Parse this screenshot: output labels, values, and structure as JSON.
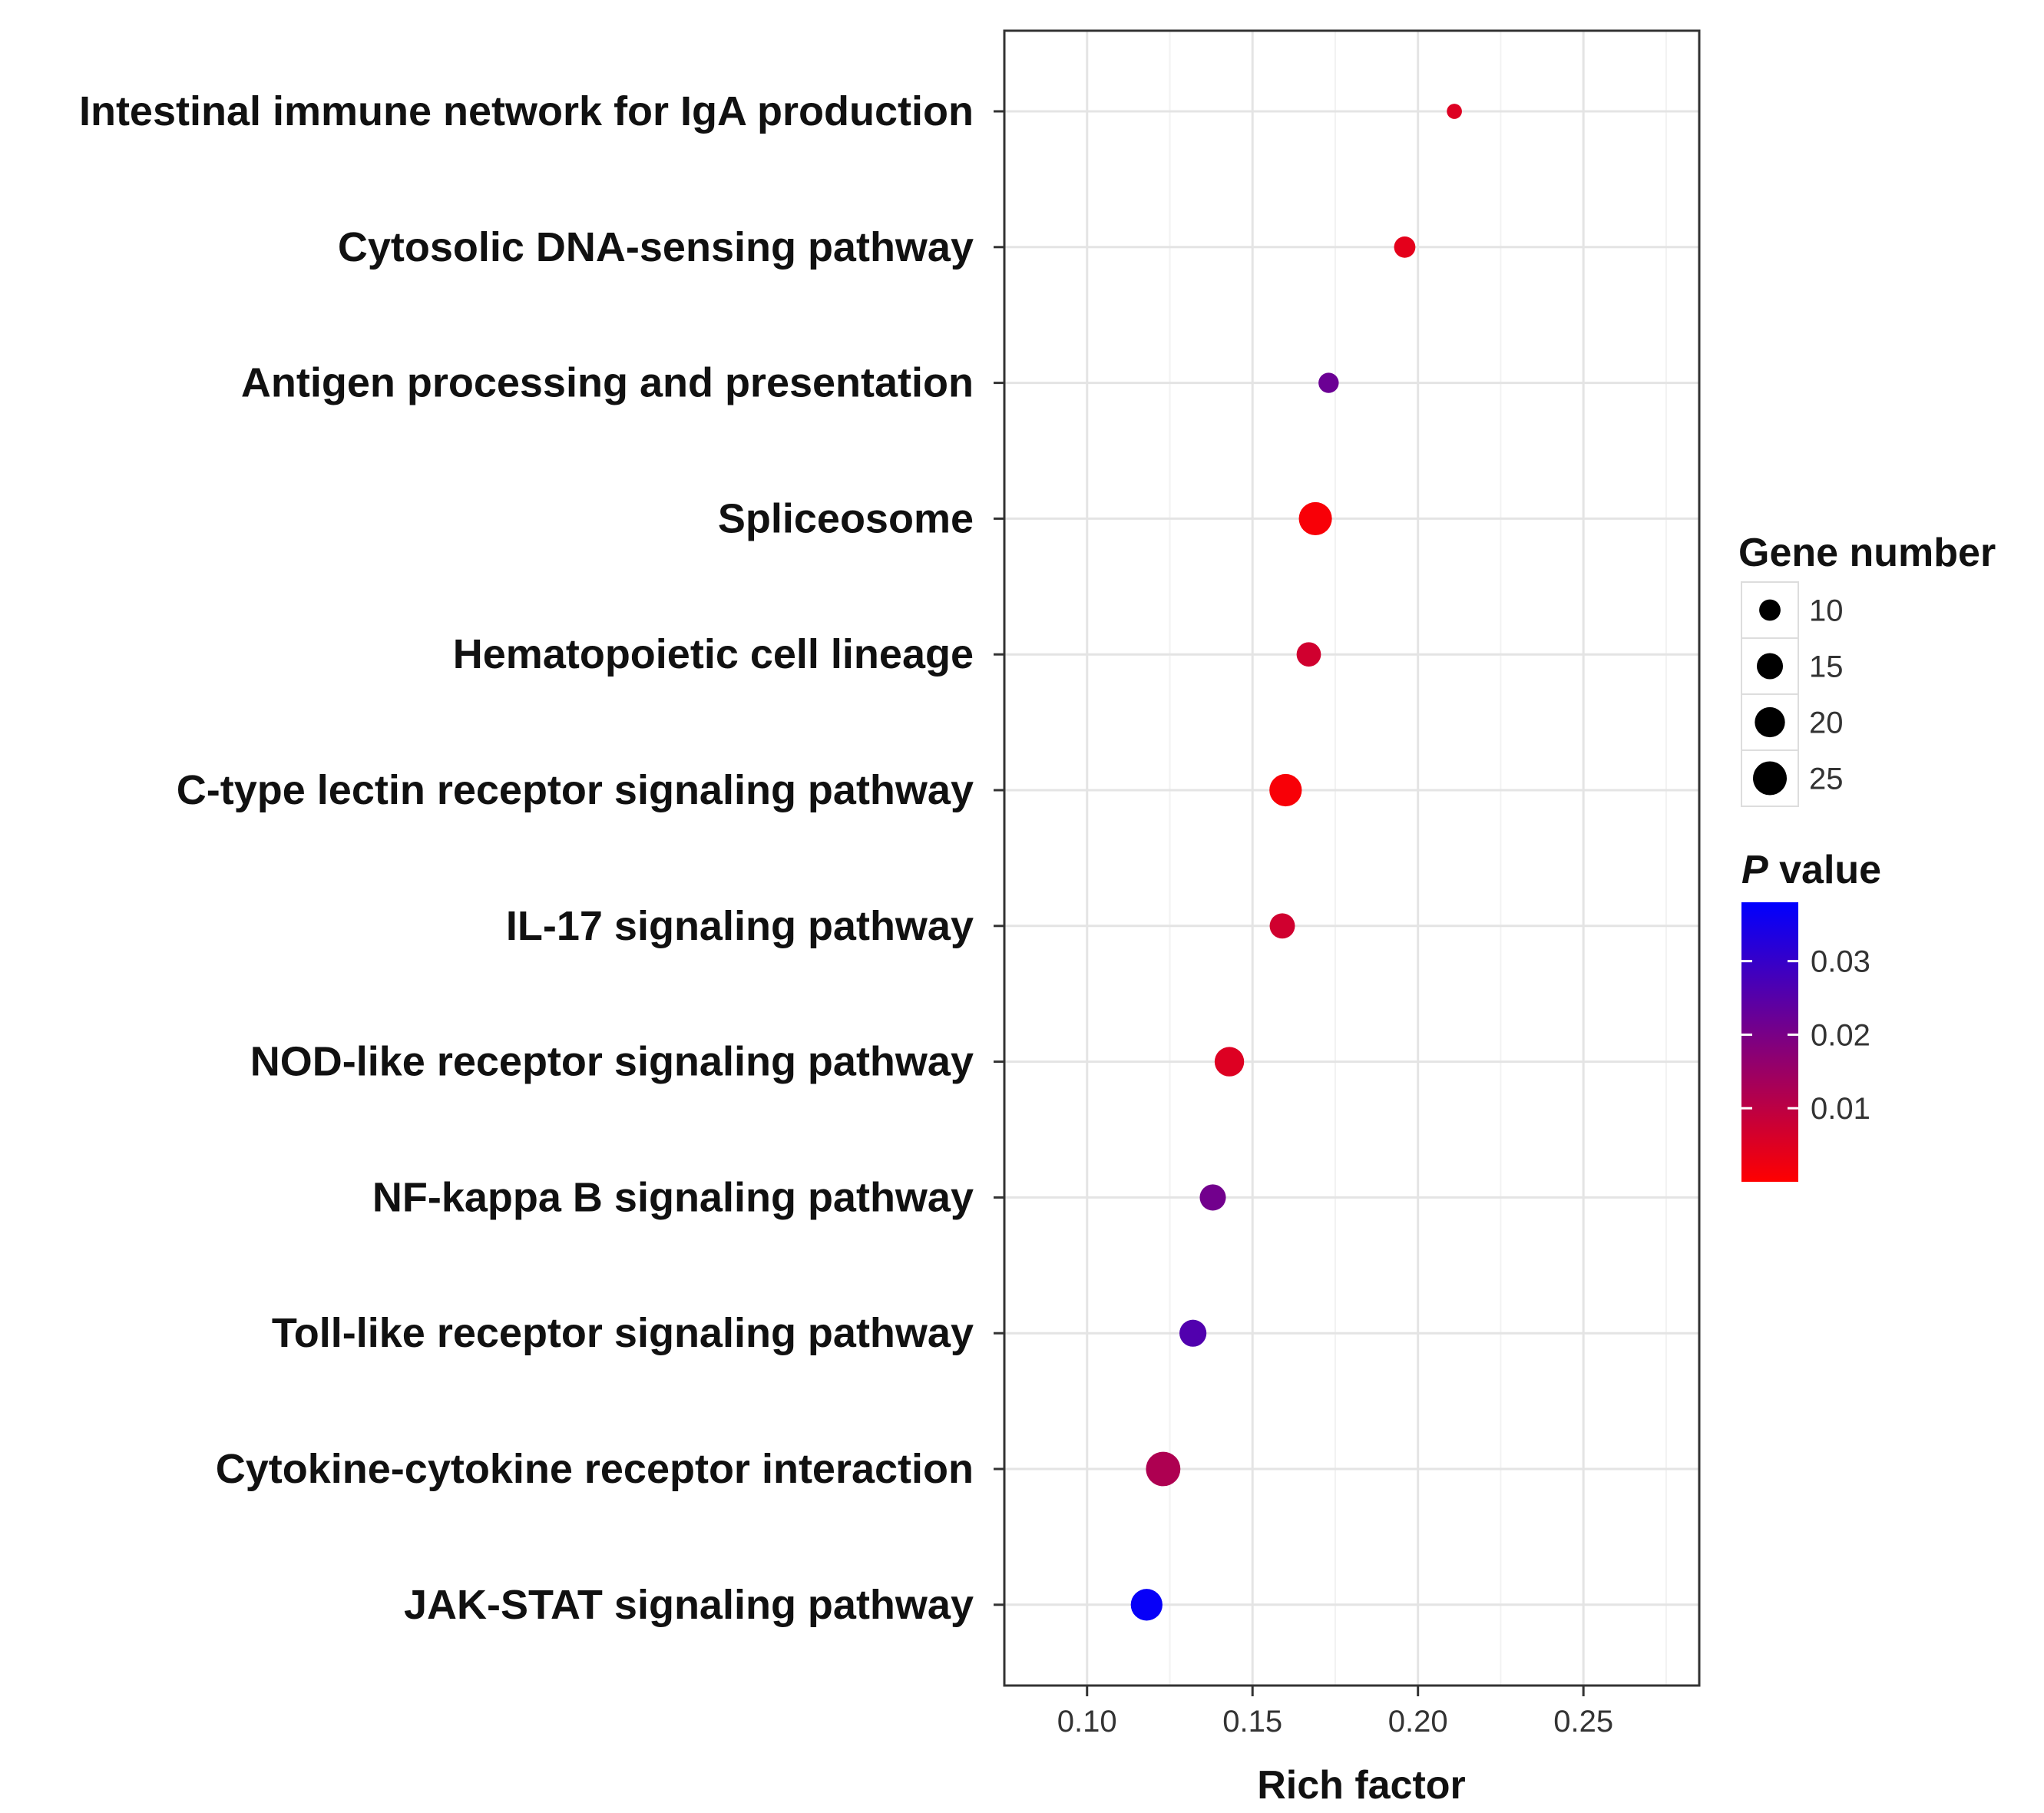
{
  "chart_data": {
    "type": "scatter",
    "title": "",
    "xlabel": "Rich factor",
    "ylabel": "",
    "xlim": [
      0.075,
      0.285
    ],
    "xticks": [
      0.1,
      0.15,
      0.2,
      0.25
    ],
    "xtick_labels": [
      "0.10",
      "0.15",
      "0.20",
      "0.25"
    ],
    "grid": true,
    "categories": [
      "Intestinal immune network for IgA production",
      "Cytosolic DNA-sensing pathway",
      "Antigen processing and presentation",
      "Spliceosome",
      "Hematopoietic cell lineage",
      "C-type lectin receptor signaling pathway",
      "IL-17 signaling pathway",
      "NOD-like receptor signaling pathway",
      "NF-kappa B signaling pathway",
      "Toll-like receptor signaling pathway",
      "Cytokine-cytokine receptor interaction",
      "JAK-STAT signaling pathway"
    ],
    "points": [
      {
        "pathway": "Intestinal immune network for IgA production",
        "rich_factor": 0.211,
        "gene_number": 5,
        "p_value": 0.005
      },
      {
        "pathway": "Cytosolic DNA-sensing pathway",
        "rich_factor": 0.196,
        "gene_number": 10,
        "p_value": 0.004
      },
      {
        "pathway": "Antigen processing and presentation",
        "rich_factor": 0.173,
        "gene_number": 9,
        "p_value": 0.022
      },
      {
        "pathway": "Spliceosome",
        "rich_factor": 0.169,
        "gene_number": 24,
        "p_value": 0.001
      },
      {
        "pathway": "Hematopoietic cell lineage",
        "rich_factor": 0.167,
        "gene_number": 13,
        "p_value": 0.007
      },
      {
        "pathway": "C-type lectin receptor signaling pathway",
        "rich_factor": 0.16,
        "gene_number": 23,
        "p_value": 0.001
      },
      {
        "pathway": "IL-17 signaling pathway",
        "rich_factor": 0.159,
        "gene_number": 14,
        "p_value": 0.007
      },
      {
        "pathway": "NOD-like receptor signaling pathway",
        "rich_factor": 0.143,
        "gene_number": 19,
        "p_value": 0.005
      },
      {
        "pathway": "NF-kappa B signaling pathway",
        "rich_factor": 0.138,
        "gene_number": 15,
        "p_value": 0.021
      },
      {
        "pathway": "Toll-like receptor signaling pathway",
        "rich_factor": 0.132,
        "gene_number": 16,
        "p_value": 0.026
      },
      {
        "pathway": "Cytokine-cytokine receptor interaction",
        "rich_factor": 0.123,
        "gene_number": 26,
        "p_value": 0.012
      },
      {
        "pathway": "JAK-STAT signaling pathway",
        "rich_factor": 0.118,
        "gene_number": 22,
        "p_value": 0.037
      }
    ],
    "legend_size": {
      "title": "Gene number",
      "values": [
        10,
        15,
        20,
        25
      ],
      "labels": [
        "10",
        "15",
        "20",
        "25"
      ],
      "position": "right"
    },
    "legend_color": {
      "title_italic": "P",
      "title_rest": " value",
      "range": [
        0.0,
        0.038
      ],
      "low_color": "#ff0000",
      "high_color": "#0000ff",
      "ticks": [
        0.01,
        0.02,
        0.03
      ],
      "tick_labels": [
        "0.01",
        "0.02",
        "0.03"
      ],
      "position": "right"
    }
  }
}
